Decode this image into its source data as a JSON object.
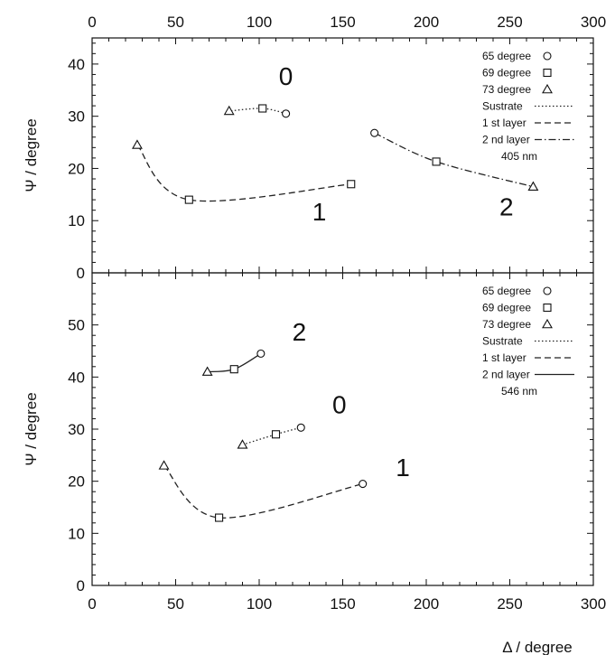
{
  "chart_data": [
    {
      "type": "line",
      "panel": "top",
      "xlabel": "",
      "ylabel": "Ψ / degree",
      "xlim": [
        0,
        300
      ],
      "ylim": [
        0,
        45
      ],
      "xticks": [
        0,
        50,
        100,
        150,
        200,
        250,
        300
      ],
      "yticks": [
        0,
        10,
        20,
        30,
        40
      ],
      "xticks_position": "top",
      "grid": false,
      "legend_position": "top-right",
      "legend": {
        "markers": [
          {
            "label": "65 degree",
            "marker": "circle"
          },
          {
            "label": "69 degree",
            "marker": "square"
          },
          {
            "label": "73 degree",
            "marker": "triangle"
          }
        ],
        "lines": [
          {
            "label": "Sustrate",
            "style": "dotted"
          },
          {
            "label": "1 st  layer",
            "style": "dashed"
          },
          {
            "label": "2 nd layer",
            "style": "dashdot"
          }
        ],
        "note": "405 nm"
      },
      "series": [
        {
          "id": "0",
          "label": "0",
          "line_style": "dotted",
          "label_pos": [
            116,
            36
          ],
          "points": [
            {
              "x": 116,
              "y": 30.5,
              "marker": "circle"
            },
            {
              "x": 102,
              "y": 31.5,
              "marker": "square"
            },
            {
              "x": 82,
              "y": 31,
              "marker": "triangle"
            }
          ]
        },
        {
          "id": "1",
          "label": "1",
          "line_style": "dashed",
          "label_pos": [
            136,
            10
          ],
          "points": [
            {
              "x": 27,
              "y": 24.5,
              "marker": "triangle"
            },
            {
              "x": 58,
              "y": 14,
              "marker": "square"
            },
            {
              "x": 155,
              "y": 17,
              "marker": "square"
            }
          ]
        },
        {
          "id": "2",
          "label": "2",
          "line_style": "dashdot",
          "label_pos": [
            248,
            11
          ],
          "points": [
            {
              "x": 169,
              "y": 26.8,
              "marker": "circle"
            },
            {
              "x": 206,
              "y": 21.3,
              "marker": "square"
            },
            {
              "x": 264,
              "y": 16.5,
              "marker": "triangle"
            }
          ]
        }
      ]
    },
    {
      "type": "line",
      "panel": "bottom",
      "xlabel": "Δ / degree",
      "ylabel": "Ψ / degree",
      "xlim": [
        0,
        300
      ],
      "ylim": [
        0,
        60
      ],
      "xticks": [
        0,
        50,
        100,
        150,
        200,
        250,
        300
      ],
      "yticks": [
        0,
        10,
        20,
        30,
        40,
        50
      ],
      "xticks_position": "bottom",
      "grid": false,
      "legend_position": "top-right",
      "legend": {
        "markers": [
          {
            "label": "65 degree",
            "marker": "circle"
          },
          {
            "label": "69 degree",
            "marker": "square"
          },
          {
            "label": "73 degree",
            "marker": "triangle"
          }
        ],
        "lines": [
          {
            "label": "Sustrate",
            "style": "dotted"
          },
          {
            "label": "1 st  layer",
            "style": "dashed"
          },
          {
            "label": "2 nd layer",
            "style": "solid"
          }
        ],
        "note": "546 nm"
      },
      "series": [
        {
          "id": "2",
          "label": "2",
          "line_style": "solid",
          "label_pos": [
            124,
            47
          ],
          "points": [
            {
              "x": 69,
              "y": 41,
              "marker": "triangle"
            },
            {
              "x": 85,
              "y": 41.5,
              "marker": "square"
            },
            {
              "x": 101,
              "y": 44.5,
              "marker": "circle"
            }
          ]
        },
        {
          "id": "0",
          "label": "0",
          "line_style": "dotted",
          "label_pos": [
            148,
            33
          ],
          "points": [
            {
              "x": 90,
              "y": 27,
              "marker": "triangle"
            },
            {
              "x": 110,
              "y": 29,
              "marker": "square"
            },
            {
              "x": 125,
              "y": 30.3,
              "marker": "circle"
            }
          ]
        },
        {
          "id": "1",
          "label": "1",
          "line_style": "dashed",
          "label_pos": [
            186,
            21
          ],
          "points": [
            {
              "x": 43,
              "y": 23,
              "marker": "triangle"
            },
            {
              "x": 76,
              "y": 13,
              "marker": "square"
            },
            {
              "x": 162,
              "y": 19.5,
              "marker": "circle"
            }
          ]
        }
      ]
    }
  ]
}
